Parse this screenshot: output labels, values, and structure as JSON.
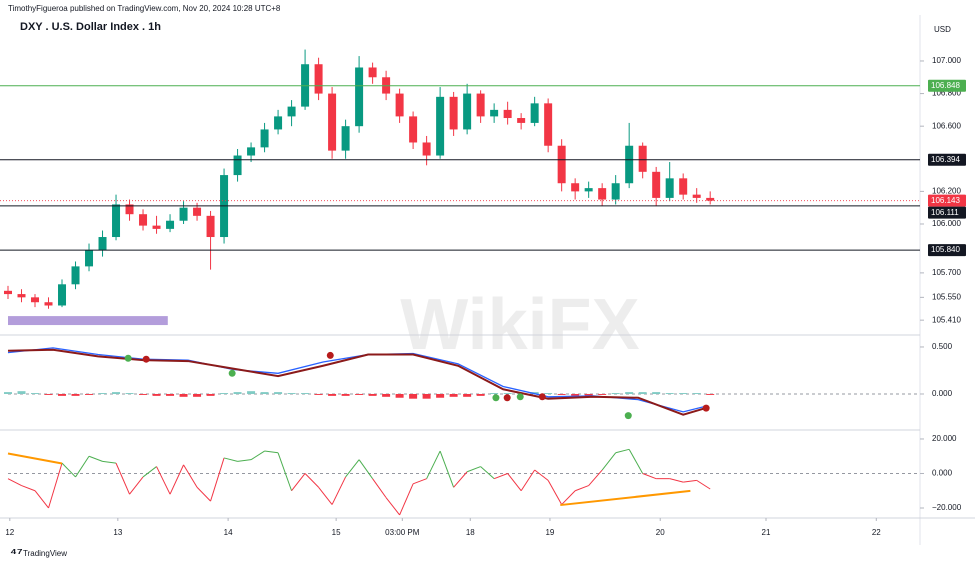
{
  "attribution": "TimothyFigueroa published on TradingView.com, Nov 20, 2024 10:28 UTC+8",
  "footer": {
    "brand": "TradingView"
  },
  "watermark": "WikiFX",
  "chart_data": [
    {
      "type": "candlestick",
      "title": "DXY . U.S. Dollar Index . 1h",
      "currency": "USD",
      "up_color": "#089981",
      "down_color": "#f23645",
      "xlim": [
        0,
        201.5
      ],
      "xticks": [
        {
          "value": 0.4,
          "label": "12"
        },
        {
          "value": 24.4,
          "label": "13"
        },
        {
          "value": 48.9,
          "label": "14"
        },
        {
          "value": 72.9,
          "label": "15"
        },
        {
          "value": 87.6,
          "label": "03:00 PM"
        },
        {
          "value": 102.7,
          "label": "18"
        },
        {
          "value": 120.4,
          "label": "19"
        },
        {
          "value": 144.9,
          "label": "20"
        },
        {
          "value": 168.4,
          "label": "21"
        },
        {
          "value": 192.9,
          "label": "22"
        }
      ],
      "ylim": [
        105.319,
        107.282
      ],
      "yticks": [
        {
          "value": 107,
          "label": "107.000"
        },
        {
          "value": 106.8,
          "label": "106.800"
        },
        {
          "value": 106.6,
          "label": "106.600"
        },
        {
          "value": 106.2,
          "label": "106.200"
        },
        {
          "value": 106,
          "label": "106.000"
        },
        {
          "value": 105.7,
          "label": "105.700"
        },
        {
          "value": 105.55,
          "label": "105.550"
        },
        {
          "value": 105.41,
          "label": "105.410"
        }
      ],
      "levels": [
        {
          "value": 106.848,
          "label": "106.848",
          "color": "#4caf50"
        },
        {
          "value": 106.394,
          "label": "106.394",
          "color": "#131722"
        },
        {
          "value": 106.143,
          "label": "106.143",
          "color": "#f23645"
        },
        {
          "value": 106.111,
          "label": "106.111",
          "color": "#131722"
        },
        {
          "value": 105.84,
          "label": "105.840",
          "color": "#131722"
        }
      ],
      "zone": {
        "x": [
          0,
          35.5
        ],
        "values": [
          105.38,
          105.435
        ],
        "color": "#b39ddb"
      },
      "x": [
        0,
        3,
        6,
        9,
        12,
        15,
        18,
        21,
        24,
        27,
        30,
        33,
        36,
        39,
        42,
        45,
        48,
        51,
        54,
        57,
        60,
        63,
        66,
        69,
        72,
        75,
        78,
        81,
        84,
        87,
        90,
        93,
        96,
        99,
        102,
        105,
        108,
        111,
        114,
        117,
        120,
        123,
        126,
        129,
        132,
        135,
        138,
        141,
        144,
        147,
        150,
        153,
        156
      ],
      "ohlc": [
        [
          105.59,
          105.62,
          105.54,
          105.57
        ],
        [
          105.57,
          105.6,
          105.52,
          105.55
        ],
        [
          105.55,
          105.57,
          105.49,
          105.52
        ],
        [
          105.52,
          105.55,
          105.48,
          105.5
        ],
        [
          105.5,
          105.66,
          105.49,
          105.63
        ],
        [
          105.63,
          105.77,
          105.6,
          105.74
        ],
        [
          105.74,
          105.88,
          105.71,
          105.84
        ],
        [
          105.84,
          105.96,
          105.8,
          105.92
        ],
        [
          105.92,
          106.18,
          105.9,
          106.12
        ],
        [
          106.12,
          106.15,
          106.02,
          106.06
        ],
        [
          106.06,
          106.09,
          105.96,
          105.99
        ],
        [
          105.99,
          106.05,
          105.94,
          105.97
        ],
        [
          105.97,
          106.06,
          105.95,
          106.02
        ],
        [
          106.02,
          106.14,
          106.0,
          106.1
        ],
        [
          106.1,
          106.13,
          106.02,
          106.05
        ],
        [
          106.05,
          106.08,
          105.72,
          105.92
        ],
        [
          105.92,
          106.34,
          105.88,
          106.3
        ],
        [
          106.3,
          106.46,
          106.26,
          106.42
        ],
        [
          106.42,
          106.5,
          106.38,
          106.47
        ],
        [
          106.47,
          106.62,
          106.44,
          106.58
        ],
        [
          106.58,
          106.7,
          106.55,
          106.66
        ],
        [
          106.66,
          106.76,
          106.6,
          106.72
        ],
        [
          106.72,
          107.07,
          106.7,
          106.98
        ],
        [
          106.98,
          107.02,
          106.76,
          106.8
        ],
        [
          106.8,
          106.84,
          106.4,
          106.45
        ],
        [
          106.45,
          106.64,
          106.4,
          106.6
        ],
        [
          106.6,
          107.03,
          106.56,
          106.96
        ],
        [
          106.96,
          106.99,
          106.86,
          106.9
        ],
        [
          106.9,
          106.94,
          106.76,
          106.8
        ],
        [
          106.8,
          106.83,
          106.62,
          106.66
        ],
        [
          106.66,
          106.69,
          106.46,
          106.5
        ],
        [
          106.5,
          106.54,
          106.36,
          106.42
        ],
        [
          106.42,
          106.84,
          106.4,
          106.78
        ],
        [
          106.78,
          106.81,
          106.54,
          106.58
        ],
        [
          106.58,
          106.86,
          106.55,
          106.8
        ],
        [
          106.8,
          106.82,
          106.62,
          106.66
        ],
        [
          106.66,
          106.74,
          106.62,
          106.7
        ],
        [
          106.7,
          106.75,
          106.61,
          106.65
        ],
        [
          106.65,
          106.68,
          106.58,
          106.62
        ],
        [
          106.62,
          106.78,
          106.6,
          106.74
        ],
        [
          106.74,
          106.77,
          106.44,
          106.48
        ],
        [
          106.48,
          106.52,
          106.2,
          106.25
        ],
        [
          106.25,
          106.28,
          106.15,
          106.2
        ],
        [
          106.2,
          106.26,
          106.16,
          106.22
        ],
        [
          106.22,
          106.25,
          106.11,
          106.15
        ],
        [
          106.15,
          106.3,
          106.12,
          106.25
        ],
        [
          106.25,
          106.62,
          106.22,
          106.48
        ],
        [
          106.48,
          106.5,
          106.28,
          106.32
        ],
        [
          106.32,
          106.35,
          106.11,
          106.16
        ],
        [
          106.16,
          106.38,
          106.14,
          106.28
        ],
        [
          106.28,
          106.31,
          106.15,
          106.18
        ],
        [
          106.18,
          106.22,
          106.13,
          106.16
        ],
        [
          106.16,
          106.2,
          106.12,
          106.143
        ]
      ]
    },
    {
      "type": "macd",
      "xlim": [
        0,
        201.5
      ],
      "ylim": [
        -0.383,
        0.606
      ],
      "yticks": [
        {
          "value": 0.5,
          "label": "0.500"
        },
        {
          "value": 0,
          "label": "0.000"
        }
      ],
      "line_x": [
        0,
        10,
        20,
        30,
        40,
        50,
        60,
        70,
        80,
        90,
        100,
        110,
        120,
        130,
        140,
        150,
        155
      ],
      "series": [
        {
          "color": "#2962ff",
          "values": [
            0.44,
            0.49,
            0.42,
            0.37,
            0.36,
            0.26,
            0.22,
            0.34,
            0.42,
            0.43,
            0.32,
            0.08,
            -0.03,
            -0.02,
            -0.06,
            -0.19,
            -0.13
          ]
        },
        {
          "color": "#8b1a1a",
          "values": [
            0.46,
            0.47,
            0.4,
            0.36,
            0.35,
            0.27,
            0.19,
            0.3,
            0.42,
            0.42,
            0.3,
            0.05,
            -0.05,
            -0.03,
            -0.04,
            -0.22,
            -0.15
          ]
        }
      ],
      "hist_x": [
        0,
        3,
        6,
        9,
        12,
        15,
        18,
        21,
        24,
        27,
        30,
        33,
        36,
        39,
        42,
        45,
        48,
        51,
        54,
        57,
        60,
        63,
        66,
        69,
        72,
        75,
        78,
        81,
        84,
        87,
        90,
        93,
        96,
        99,
        102,
        105,
        108,
        111,
        114,
        117,
        120,
        123,
        126,
        129,
        132,
        135,
        138,
        141,
        144,
        147,
        150,
        153,
        156
      ],
      "hist": [
        0.02,
        0.03,
        0.01,
        -0.01,
        -0.02,
        -0.02,
        -0.01,
        0.01,
        0.02,
        0.01,
        -0.01,
        -0.02,
        -0.02,
        -0.03,
        -0.03,
        -0.02,
        0.01,
        0.02,
        0.03,
        0.02,
        0.02,
        0.01,
        0.01,
        -0.01,
        -0.02,
        -0.02,
        -0.01,
        -0.02,
        -0.03,
        -0.04,
        -0.05,
        -0.05,
        -0.04,
        -0.03,
        -0.03,
        -0.02,
        0.01,
        0.01,
        0.01,
        0.02,
        0.01,
        -0.01,
        -0.02,
        -0.02,
        -0.01,
        0.01,
        0.02,
        0.02,
        0.02,
        0.01,
        0.01,
        0.01,
        -0.01
      ],
      "hist_up_color": "#80cbc4",
      "hist_down_color": "#f23645",
      "crosses": [
        {
          "x": 26.7,
          "value": 0.38,
          "color": "#4caf50"
        },
        {
          "x": 30.7,
          "value": 0.37,
          "color": "#b71c1c"
        },
        {
          "x": 49.8,
          "value": 0.22,
          "color": "#4caf50"
        },
        {
          "x": 71.6,
          "value": 0.41,
          "color": "#b71c1c"
        },
        {
          "x": 108.4,
          "value": -0.04,
          "color": "#4caf50"
        },
        {
          "x": 110.9,
          "value": -0.04,
          "color": "#b71c1c"
        },
        {
          "x": 113.8,
          "value": -0.03,
          "color": "#4caf50"
        },
        {
          "x": 118.7,
          "value": -0.03,
          "color": "#b71c1c"
        },
        {
          "x": 137.8,
          "value": -0.23,
          "color": "#4caf50"
        },
        {
          "x": 155.1,
          "value": -0.15,
          "color": "#b71c1c"
        }
      ]
    },
    {
      "type": "oscillator",
      "xlim": [
        0,
        201.5
      ],
      "ylim": [
        -25.8,
        25.2
      ],
      "yticks": [
        {
          "value": 20,
          "label": "20.000"
        },
        {
          "value": 0,
          "label": "0.000"
        },
        {
          "value": -20,
          "label": "−20.000"
        }
      ],
      "x": [
        0,
        3,
        6,
        9,
        12,
        15,
        18,
        21,
        24,
        27,
        30,
        33,
        36,
        39,
        42,
        45,
        48,
        51,
        54,
        57,
        60,
        63,
        66,
        69,
        72,
        75,
        78,
        81,
        84,
        87,
        90,
        93,
        96,
        99,
        102,
        105,
        108,
        111,
        114,
        117,
        120,
        123,
        126,
        129,
        132,
        135,
        138,
        141,
        144,
        147,
        150,
        153,
        156
      ],
      "values": [
        -3,
        -7,
        -10,
        -20,
        6,
        -2,
        10,
        7,
        6,
        -12,
        -2,
        4,
        -12,
        5,
        -8,
        -16,
        9,
        7,
        8,
        13,
        12,
        -10,
        0,
        -8,
        -18,
        -2,
        8,
        -3,
        -14,
        -24,
        -6,
        -3,
        13,
        -8,
        1,
        4,
        -3,
        0,
        -10,
        2,
        -4,
        -18,
        -10,
        -7,
        2,
        12,
        14,
        0,
        -3,
        -3,
        -5,
        -4,
        -9
      ],
      "up_color": "#4caf50",
      "down_color": "#f23645",
      "divergence_color": "#ff9800",
      "divergences": [
        {
          "x": [
            0,
            12
          ],
          "values": [
            11.6,
            5.8
          ]
        },
        {
          "x": [
            122.7,
            151.6
          ],
          "values": [
            -18.3,
            -10.1
          ]
        }
      ]
    }
  ]
}
